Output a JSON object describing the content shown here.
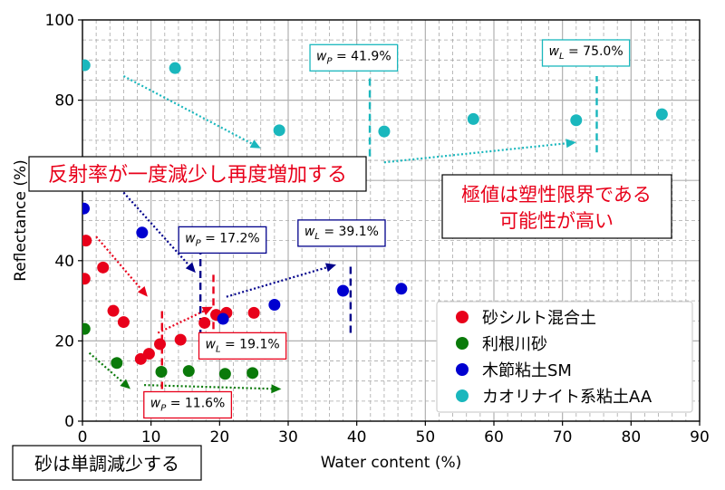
{
  "chart_data": {
    "type": "scatter",
    "xlabel": "Water content (%)",
    "ylabel": "Reflectance (%)",
    "xlim": [
      0,
      90
    ],
    "ylim": [
      0,
      100
    ],
    "xticks": [
      0,
      10,
      20,
      30,
      40,
      50,
      60,
      70,
      80,
      90
    ],
    "yticks": [
      0,
      20,
      40,
      60,
      80,
      100
    ],
    "grid": true,
    "legend_position": "lower-right",
    "series": [
      {
        "name": "砂シルト混合土",
        "color": "#e8001a",
        "points": [
          [
            0.3,
            35.5
          ],
          [
            0.5,
            45.0
          ],
          [
            3.0,
            38.3
          ],
          [
            4.5,
            27.5
          ],
          [
            6.0,
            24.7
          ],
          [
            8.5,
            15.5
          ],
          [
            9.7,
            16.8
          ],
          [
            11.3,
            19.2
          ],
          [
            14.3,
            20.3
          ],
          [
            17.8,
            24.5
          ],
          [
            19.5,
            26.5
          ],
          [
            21.0,
            27.0
          ],
          [
            25.0,
            27.0
          ]
        ]
      },
      {
        "name": "利根川砂",
        "color": "#0a7a0a",
        "points": [
          [
            0.3,
            23.0
          ],
          [
            5.0,
            14.5
          ],
          [
            11.5,
            12.3
          ],
          [
            15.5,
            12.5
          ],
          [
            20.8,
            11.8
          ],
          [
            24.8,
            12.0
          ]
        ]
      },
      {
        "name": "木節粘土SM",
        "color": "#0000d0",
        "points": [
          [
            0.2,
            53.0
          ],
          [
            8.7,
            47.0
          ],
          [
            20.5,
            25.5
          ],
          [
            28.0,
            29.0
          ],
          [
            38.0,
            32.5
          ],
          [
            46.5,
            33.0
          ]
        ]
      },
      {
        "name": "カオリナイト系粘土AA",
        "color": "#1ab7bd",
        "points": [
          [
            0.3,
            88.7
          ],
          [
            13.5,
            88.0
          ],
          [
            28.7,
            72.5
          ],
          [
            44.0,
            72.2
          ],
          [
            57.0,
            75.3
          ],
          [
            72.0,
            75.0
          ],
          [
            84.5,
            76.5
          ]
        ]
      }
    ],
    "threshold_lines": [
      {
        "x": 11.6,
        "y_range": [
          8,
          28
        ],
        "color": "#e8001a",
        "label": "w_P = 11.6%",
        "sym": "w",
        "sub": "P",
        "value": "11.6%"
      },
      {
        "x": 19.1,
        "y_range": [
          20,
          37
        ],
        "color": "#e8001a",
        "label": "w_L = 19.1%",
        "sym": "w",
        "sub": "L",
        "value": "19.1%"
      },
      {
        "x": 17.2,
        "y_range": [
          21,
          43
        ],
        "color": "#00008b",
        "label": "w_P = 17.2%",
        "sym": "w",
        "sub": "P",
        "value": "17.2%"
      },
      {
        "x": 39.1,
        "y_range": [
          22,
          39
        ],
        "color": "#00008b",
        "label": "w_L = 39.1%",
        "sym": "w",
        "sub": "L",
        "value": "39.1%"
      },
      {
        "x": 41.9,
        "y_range": [
          66,
          86
        ],
        "color": "#1ab7bd",
        "label": "w_P = 41.9%",
        "sym": "w",
        "sub": "P",
        "value": "41.9%"
      },
      {
        "x": 75.0,
        "y_range": [
          67,
          86
        ],
        "color": "#1ab7bd",
        "label": "w_L = 75.0%",
        "sym": "w",
        "sub": "L",
        "value": "75.0%"
      }
    ],
    "trend_arrows": [
      {
        "color": "#1ab7bd",
        "from": [
          6,
          86
        ],
        "to": [
          26,
          68
        ]
      },
      {
        "color": "#1ab7bd",
        "from": [
          44,
          64.5
        ],
        "to": [
          72,
          69.5
        ]
      },
      {
        "color": "#00008b",
        "from": [
          6,
          57
        ],
        "to": [
          16.5,
          37
        ]
      },
      {
        "color": "#00008b",
        "from": [
          21,
          31
        ],
        "to": [
          37,
          39
        ]
      },
      {
        "color": "#e8001a",
        "from": [
          2,
          46
        ],
        "to": [
          9.5,
          31
        ]
      },
      {
        "color": "#e8001a",
        "from": [
          11,
          22
        ],
        "to": [
          19,
          28.5
        ]
      },
      {
        "color": "#0a7a0a",
        "from": [
          1,
          17
        ],
        "to": [
          7,
          8
        ]
      },
      {
        "color": "#0a7a0a",
        "from": [
          9,
          9
        ],
        "to": [
          29,
          8
        ]
      }
    ],
    "annotations": [
      {
        "text": "反射率が一度減少し再度増加する",
        "color": "#e8001a"
      },
      {
        "lines": [
          "極値は塑性限界である",
          "可能性が高い"
        ],
        "color": "#e8001a"
      },
      {
        "text": "砂は単調減少する",
        "color": "#000000"
      }
    ]
  }
}
